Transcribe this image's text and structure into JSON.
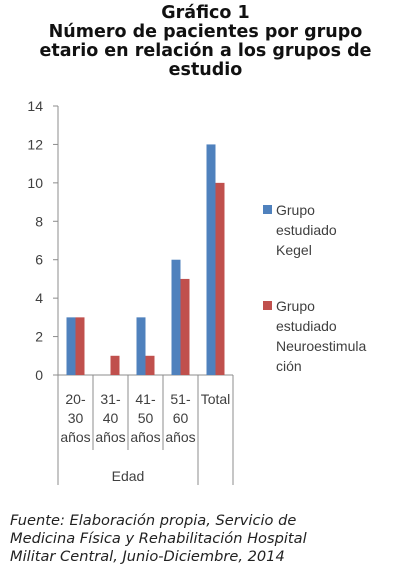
{
  "figure": {
    "title_lines": [
      "Gráfico 1",
      "Número de pacientes por grupo",
      "etario en relación a los grupos de",
      "estudio"
    ],
    "source_lines": [
      "Fuente: Elaboración propia, Servicio de",
      "Medicina Física y Rehabilitación Hospital",
      "Militar Central, Junio-Diciembre, 2014"
    ]
  },
  "chart_data": {
    "type": "bar",
    "categories": [
      [
        "20-",
        "30",
        "años"
      ],
      [
        "31-",
        "40",
        "años"
      ],
      [
        "41-",
        "50",
        "años"
      ],
      [
        "51-",
        "60",
        "años"
      ],
      [
        "Total"
      ]
    ],
    "groups": [
      {
        "label": "Edad",
        "categories": [
          0,
          1,
          2,
          3
        ]
      },
      {
        "label": "",
        "categories": [
          4
        ]
      }
    ],
    "series": [
      {
        "name": [
          "Grupo",
          "estudiado",
          "Kegel"
        ],
        "color": "#4f81bd",
        "values": [
          3,
          0,
          3,
          6,
          12
        ]
      },
      {
        "name": [
          "Grupo",
          "estudiado",
          "Neuroestimula",
          "ción"
        ],
        "color": "#c0504d",
        "values": [
          3,
          1,
          1,
          5,
          10
        ]
      }
    ],
    "yticks": [
      0,
      2,
      4,
      6,
      8,
      10,
      12,
      14
    ],
    "ylim": [
      0,
      14
    ],
    "grid": false,
    "legend_position": "right"
  }
}
